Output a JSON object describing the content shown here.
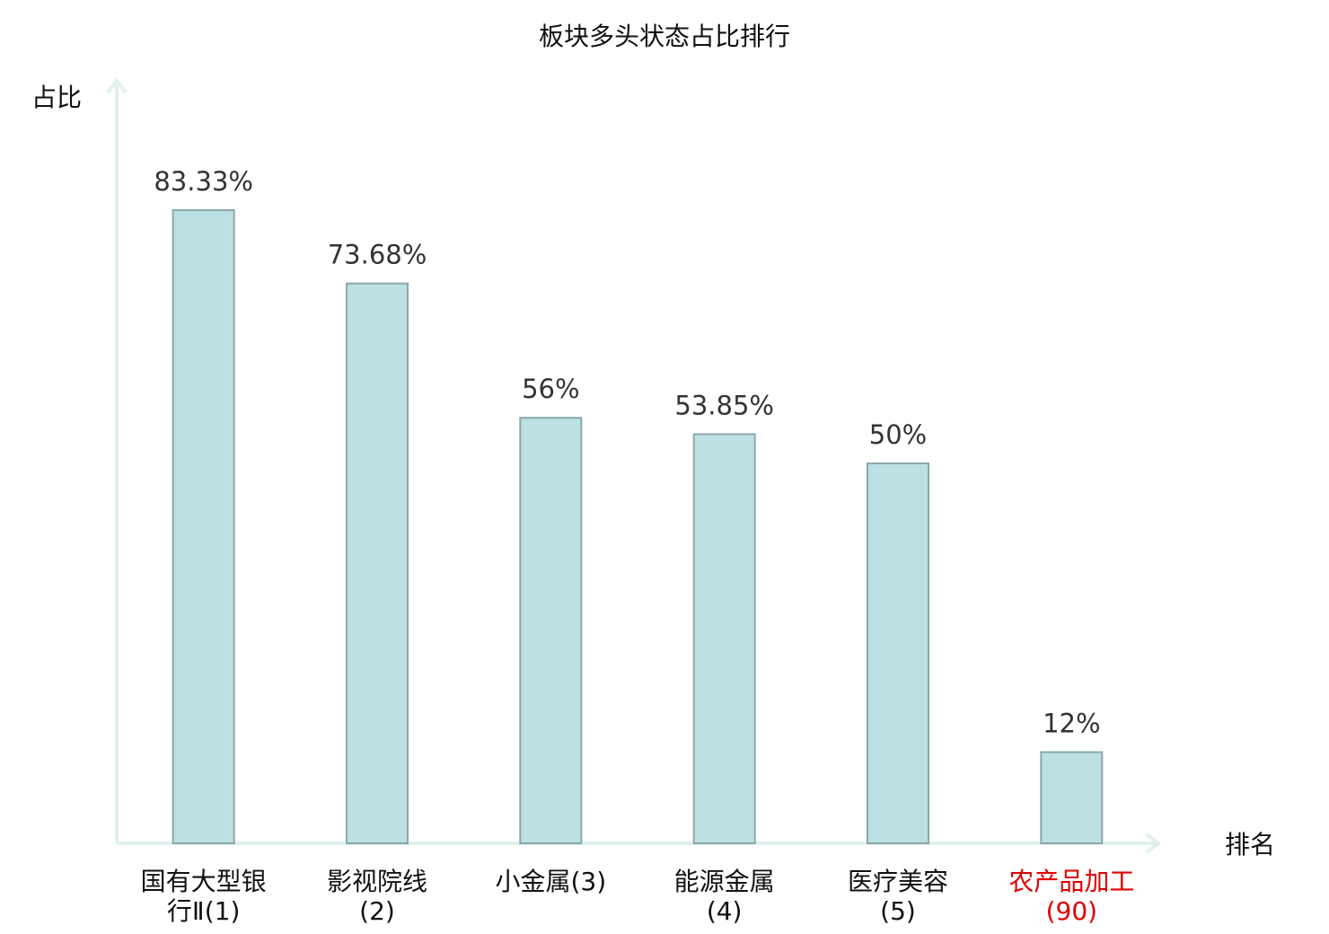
{
  "chart_data": {
    "type": "bar",
    "title": "板块多头状态占比排行",
    "y_label": "占比",
    "x_label": "排名",
    "categories": [
      "国有大型银行Ⅱ(1)",
      "影视院线(2)",
      "小金属(3)",
      "能源金属(4)",
      "医疗美容(5)",
      "农产品加工(90)"
    ],
    "category_colors": [
      "#111111",
      "#111111",
      "#111111",
      "#111111",
      "#111111",
      "#e00000"
    ],
    "values": [
      83.33,
      73.68,
      56,
      53.85,
      50,
      12
    ],
    "value_labels": [
      "83.33%",
      "73.68%",
      "56%",
      "53.85%",
      "50%",
      "12%"
    ],
    "color": "#bde0e2",
    "edge_color": "#8aa8aa",
    "axis_color": "#dff0ee",
    "ylim": [
      0,
      100
    ]
  }
}
